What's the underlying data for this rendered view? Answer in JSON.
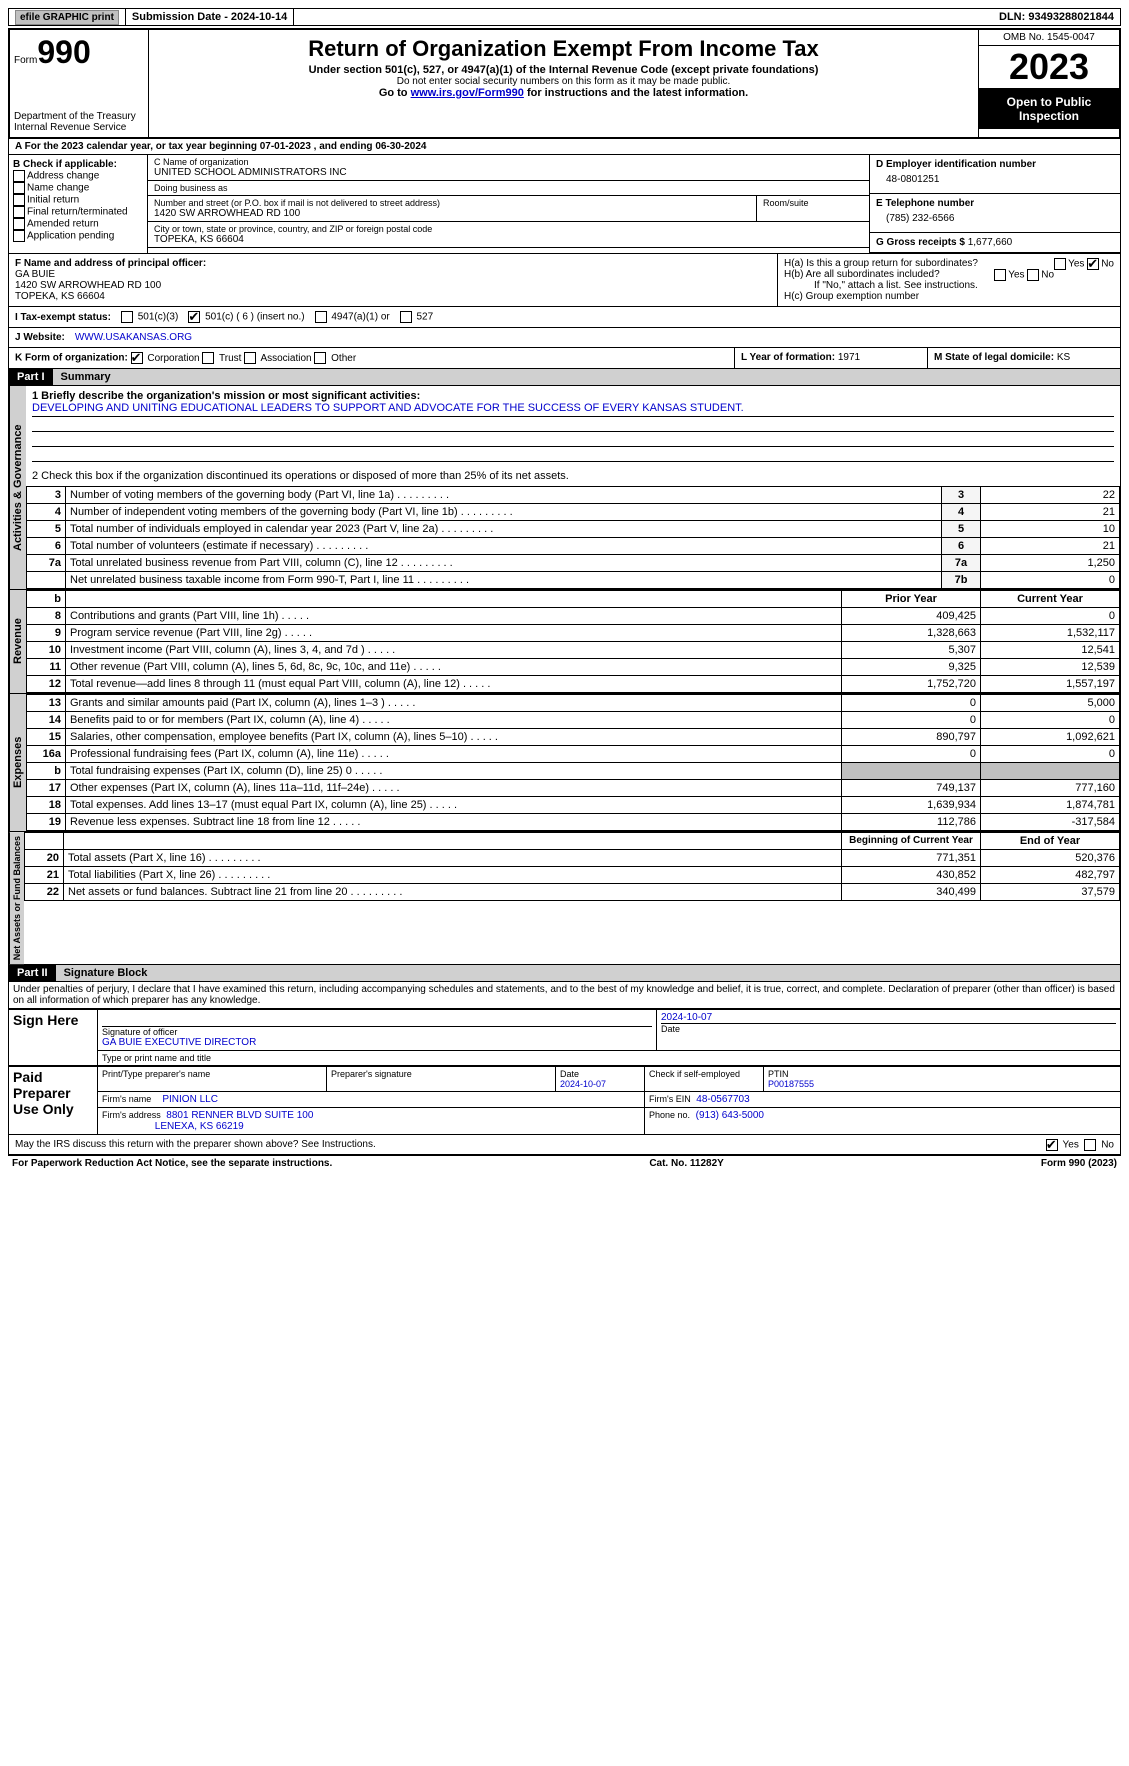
{
  "topbar": {
    "efile": "efile GRAPHIC print",
    "submission": "Submission Date - 2024-10-14",
    "dln": "DLN: 93493288021844"
  },
  "header": {
    "form_label": "Form",
    "form_number": "990",
    "dept": "Department of the Treasury",
    "irs": "Internal Revenue Service",
    "title": "Return of Organization Exempt From Income Tax",
    "subtitle": "Under section 501(c), 527, or 4947(a)(1) of the Internal Revenue Code (except private foundations)",
    "warn": "Do not enter social security numbers on this form as it may be made public.",
    "goto_pre": "Go to ",
    "goto_link": "www.irs.gov/Form990",
    "goto_post": " for instructions and the latest information.",
    "omb": "OMB No. 1545-0047",
    "year": "2023",
    "open": "Open to Public Inspection"
  },
  "lineA": "A For the 2023 calendar year, or tax year beginning 07-01-2023    , and ending 06-30-2024",
  "boxB": {
    "title": "B Check if applicable:",
    "opts": [
      "Address change",
      "Name change",
      "Initial return",
      "Final return/terminated",
      "Amended return",
      "Application pending"
    ]
  },
  "boxC": {
    "name_label": "C Name of organization",
    "name": "UNITED SCHOOL ADMINISTRATORS INC",
    "dba_label": "Doing business as",
    "dba": "",
    "addr_label": "Number and street (or P.O. box if mail is not delivered to street address)",
    "addr": "1420 SW ARROWHEAD RD 100",
    "room_label": "Room/suite",
    "city_label": "City or town, state or province, country, and ZIP or foreign postal code",
    "city": "TOPEKA, KS  66604"
  },
  "boxD": {
    "label": "D Employer identification number",
    "value": "48-0801251"
  },
  "boxE": {
    "label": "E Telephone number",
    "value": "(785) 232-6566"
  },
  "boxG": {
    "label": "G Gross receipts $",
    "value": "1,677,660"
  },
  "boxF": {
    "label": "F  Name and address of principal officer:",
    "name": "GA BUIE",
    "addr1": "1420 SW ARROWHEAD RD 100",
    "addr2": "TOPEKA, KS  66604"
  },
  "boxH": {
    "a": "H(a)  Is this a group return for subordinates?",
    "b": "H(b)  Are all subordinates included?",
    "b_note": "If \"No,\" attach a list. See instructions.",
    "c": "H(c)  Group exemption number",
    "yes": "Yes",
    "no": "No"
  },
  "statusI": {
    "label": "I   Tax-exempt status:",
    "o1": "501(c)(3)",
    "o2": "501(c) ( 6 ) (insert no.)",
    "o3": "4947(a)(1) or",
    "o4": "527"
  },
  "lineJ": {
    "label": "J   Website:",
    "value": "WWW.USAKANSAS.ORG"
  },
  "lineK": {
    "label": "K Form of organization:",
    "corp": "Corporation",
    "trust": "Trust",
    "assoc": "Association",
    "other": "Other"
  },
  "lineL": {
    "label": "L Year of formation:",
    "value": "1971"
  },
  "lineM": {
    "label": "M State of legal domicile:",
    "value": "KS"
  },
  "part1": {
    "label": "Part I",
    "title": "Summary"
  },
  "mission": {
    "q": "1   Briefly describe the organization's mission or most significant activities:",
    "text": "DEVELOPING AND UNITING EDUCATIONAL LEADERS TO SUPPORT AND ADVOCATE FOR THE SUCCESS OF EVERY KANSAS STUDENT."
  },
  "line2": "2   Check this box      if the organization discontinued its operations or disposed of more than 25% of its net assets.",
  "gov_rows": [
    {
      "n": "3",
      "text": "Number of voting members of the governing body (Part VI, line 1a)",
      "ln": "3",
      "v": "22"
    },
    {
      "n": "4",
      "text": "Number of independent voting members of the governing body (Part VI, line 1b)",
      "ln": "4",
      "v": "21"
    },
    {
      "n": "5",
      "text": "Total number of individuals employed in calendar year 2023 (Part V, line 2a)",
      "ln": "5",
      "v": "10"
    },
    {
      "n": "6",
      "text": "Total number of volunteers (estimate if necessary)",
      "ln": "6",
      "v": "21"
    },
    {
      "n": "7a",
      "text": "Total unrelated business revenue from Part VIII, column (C), line 12",
      "ln": "7a",
      "v": "1,250"
    },
    {
      "n": "",
      "text": "Net unrelated business taxable income from Form 990-T, Part I, line 11",
      "ln": "7b",
      "v": "0"
    }
  ],
  "rev_hdr": {
    "b": "b",
    "prior": "Prior Year",
    "current": "Current Year"
  },
  "rev_rows": [
    {
      "n": "8",
      "text": "Contributions and grants (Part VIII, line 1h)",
      "p": "409,425",
      "c": "0"
    },
    {
      "n": "9",
      "text": "Program service revenue (Part VIII, line 2g)",
      "p": "1,328,663",
      "c": "1,532,117"
    },
    {
      "n": "10",
      "text": "Investment income (Part VIII, column (A), lines 3, 4, and 7d )",
      "p": "5,307",
      "c": "12,541"
    },
    {
      "n": "11",
      "text": "Other revenue (Part VIII, column (A), lines 5, 6d, 8c, 9c, 10c, and 11e)",
      "p": "9,325",
      "c": "12,539"
    },
    {
      "n": "12",
      "text": "Total revenue—add lines 8 through 11 (must equal Part VIII, column (A), line 12)",
      "p": "1,752,720",
      "c": "1,557,197"
    }
  ],
  "exp_rows": [
    {
      "n": "13",
      "text": "Grants and similar amounts paid (Part IX, column (A), lines 1–3 )",
      "p": "0",
      "c": "5,000"
    },
    {
      "n": "14",
      "text": "Benefits paid to or for members (Part IX, column (A), line 4)",
      "p": "0",
      "c": "0"
    },
    {
      "n": "15",
      "text": "Salaries, other compensation, employee benefits (Part IX, column (A), lines 5–10)",
      "p": "890,797",
      "c": "1,092,621"
    },
    {
      "n": "16a",
      "text": "Professional fundraising fees (Part IX, column (A), line 11e)",
      "p": "0",
      "c": "0"
    },
    {
      "n": "b",
      "text": "Total fundraising expenses (Part IX, column (D), line 25) 0",
      "p": "GREY",
      "c": "GREY"
    },
    {
      "n": "17",
      "text": "Other expenses (Part IX, column (A), lines 11a–11d, 11f–24e)",
      "p": "749,137",
      "c": "777,160"
    },
    {
      "n": "18",
      "text": "Total expenses. Add lines 13–17 (must equal Part IX, column (A), line 25)",
      "p": "1,639,934",
      "c": "1,874,781"
    },
    {
      "n": "19",
      "text": "Revenue less expenses. Subtract line 18 from line 12",
      "p": "112,786",
      "c": "-317,584"
    }
  ],
  "na_hdr": {
    "begin": "Beginning of Current Year",
    "end": "End of Year"
  },
  "na_rows": [
    {
      "n": "20",
      "text": "Total assets (Part X, line 16)",
      "p": "771,351",
      "c": "520,376"
    },
    {
      "n": "21",
      "text": "Total liabilities (Part X, line 26)",
      "p": "430,852",
      "c": "482,797"
    },
    {
      "n": "22",
      "text": "Net assets or fund balances. Subtract line 21 from line 20",
      "p": "340,499",
      "c": "37,579"
    }
  ],
  "vert": {
    "gov": "Activities & Governance",
    "rev": "Revenue",
    "exp": "Expenses",
    "na": "Net Assets or Fund Balances"
  },
  "part2": {
    "label": "Part II",
    "title": "Signature Block"
  },
  "penalty": "Under penalties of perjury, I declare that I have examined this return, including accompanying schedules and statements, and to the best of my knowledge and belief, it is true, correct, and complete. Declaration of preparer (other than officer) is based on all information of which preparer has any knowledge.",
  "sign": {
    "here": "Sign Here",
    "sig_label": "Signature of officer",
    "date_label": "Date",
    "date1": "2024-10-07",
    "officer": "GA BUIE EXECUTIVE DIRECTOR",
    "name_label": "Type or print name and title"
  },
  "paid": {
    "title": "Paid Preparer Use Only",
    "print_label": "Print/Type preparer's name",
    "sig_label": "Preparer's signature",
    "date_label": "Date",
    "date": "2024-10-07",
    "check_label": "Check       if self-employed",
    "ptin_label": "PTIN",
    "ptin": "P00187555",
    "firm_name_label": "Firm's name",
    "firm_name": "PINION LLC",
    "firm_ein_label": "Firm's EIN",
    "firm_ein": "48-0567703",
    "firm_addr_label": "Firm's address",
    "firm_addr1": "8801 RENNER BLVD SUITE 100",
    "firm_addr2": "LENEXA, KS  66219",
    "phone_label": "Phone no.",
    "phone": "(913) 643-5000"
  },
  "discuss": "May the IRS discuss this return with the preparer shown above? See Instructions.",
  "footer": {
    "left": "For Paperwork Reduction Act Notice, see the separate instructions.",
    "mid": "Cat. No. 11282Y",
    "right": "Form 990 (2023)"
  }
}
